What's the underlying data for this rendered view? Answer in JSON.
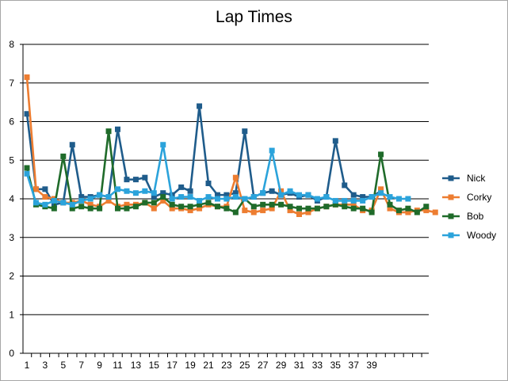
{
  "chart_data": {
    "type": "line",
    "title": "Lap Times",
    "xlabel": "",
    "ylabel": "",
    "ylim": [
      0,
      8
    ],
    "yticks": [
      0,
      1,
      2,
      3,
      4,
      5,
      6,
      7,
      8
    ],
    "xticks": [
      1,
      3,
      5,
      7,
      9,
      11,
      13,
      15,
      17,
      19,
      21,
      23,
      25,
      27,
      29,
      31,
      33,
      35,
      37,
      39
    ],
    "x_count": 44,
    "grid": "horizontal",
    "legend_position": "right",
    "series": [
      {
        "name": "Nick",
        "color": "#1f5c8b",
        "values": [
          6.2,
          4.25,
          4.25,
          3.85,
          3.9,
          5.4,
          4.05,
          4.05,
          4.1,
          4.05,
          5.8,
          4.5,
          4.5,
          4.55,
          4.05,
          4.15,
          4.1,
          4.3,
          4.2,
          6.4,
          4.4,
          4.1,
          4.1,
          4.15,
          5.75,
          4.05,
          4.15,
          4.2,
          4.1,
          4.15,
          4.05,
          4.1,
          3.95,
          4.05,
          5.5,
          4.35,
          4.1,
          4.05,
          4.05,
          4.2
        ]
      },
      {
        "name": "Corky",
        "color": "#ed7d31",
        "values": [
          7.15,
          4.25,
          4.05,
          4.0,
          3.9,
          3.9,
          3.95,
          3.85,
          3.8,
          3.95,
          3.8,
          3.85,
          3.85,
          3.9,
          3.75,
          3.95,
          3.75,
          3.75,
          3.7,
          3.75,
          3.85,
          3.8,
          3.8,
          4.55,
          3.7,
          3.65,
          3.7,
          3.75,
          4.2,
          3.7,
          3.6,
          3.65,
          3.75,
          3.8,
          3.85,
          3.85,
          3.85,
          3.7,
          3.7,
          4.25,
          3.75,
          3.65,
          3.65,
          3.7,
          3.7,
          3.65
        ]
      },
      {
        "name": "Bob",
        "color": "#1f6b2a",
        "values": [
          4.8,
          3.85,
          3.8,
          3.75,
          5.1,
          3.75,
          3.8,
          3.75,
          3.75,
          5.75,
          3.75,
          3.75,
          3.8,
          3.9,
          3.9,
          4.05,
          3.85,
          3.8,
          3.8,
          3.85,
          3.9,
          3.8,
          3.75,
          3.65,
          4.0,
          3.8,
          3.85,
          3.85,
          3.85,
          3.8,
          3.75,
          3.75,
          3.75,
          3.8,
          3.85,
          3.8,
          3.75,
          3.75,
          3.65,
          5.15,
          3.85,
          3.7,
          3.75,
          3.65,
          3.8
        ]
      },
      {
        "name": "Woody",
        "color": "#2ba3db",
        "values": [
          4.65,
          3.9,
          3.85,
          3.95,
          3.9,
          3.85,
          3.95,
          4.0,
          4.1,
          4.05,
          4.25,
          4.2,
          4.15,
          4.2,
          4.15,
          5.4,
          4.0,
          4.05,
          4.05,
          3.95,
          4.05,
          4.0,
          4.0,
          4.05,
          4.0,
          4.05,
          4.15,
          5.25,
          4.1,
          4.2,
          4.1,
          4.1,
          4.0,
          4.05,
          3.95,
          3.95,
          3.95,
          3.95,
          4.05,
          4.15,
          4.05,
          4.0,
          4.0
        ]
      }
    ]
  }
}
